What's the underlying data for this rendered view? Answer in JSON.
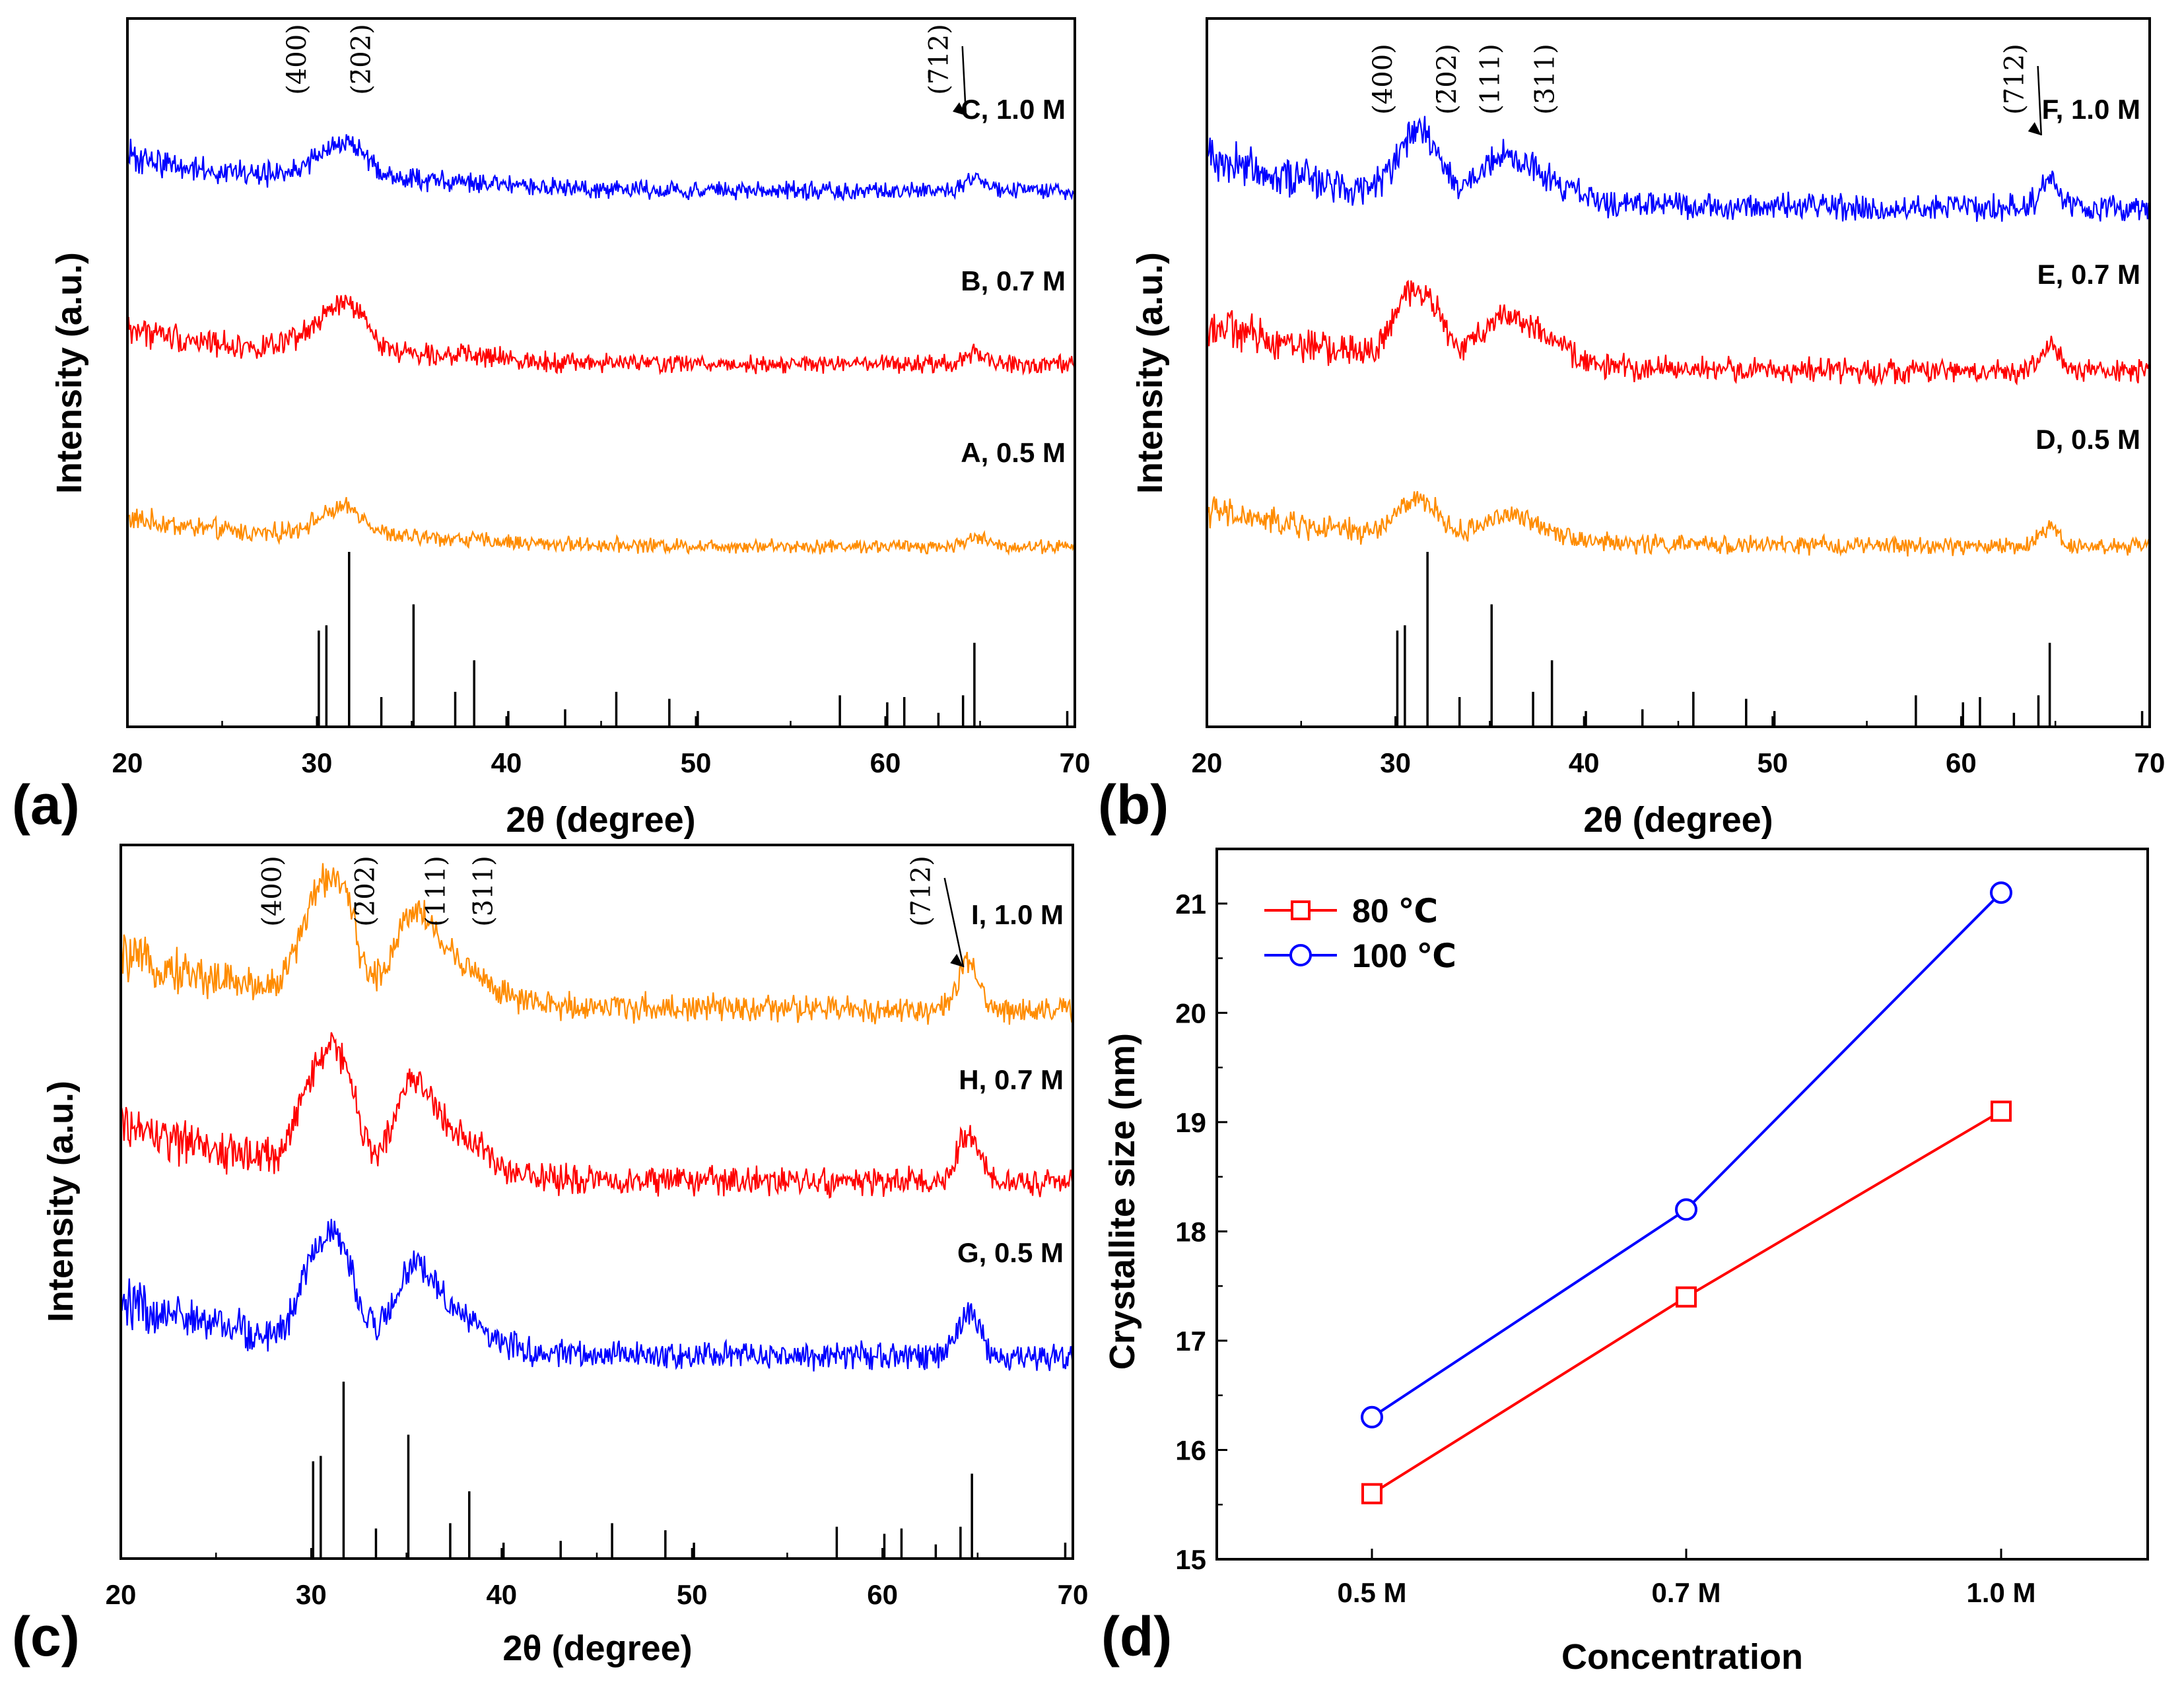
{
  "chart_data": [
    {
      "panel": "(a)",
      "type": "line",
      "xlabel": "2θ (degree)",
      "ylabel": "Intensity (a.u.)",
      "xlim": [
        20,
        70
      ],
      "xticks": [
        "20",
        "30",
        "40",
        "50",
        "60",
        "70"
      ],
      "series": [
        {
          "name": "C, 1.0 M",
          "color": "#ff8c00",
          "level": 3
        },
        {
          "name": "B, 0.7 M",
          "color": "#ff0000",
          "level": 2
        },
        {
          "name": "A, 0.5 M",
          "color": "#0000ff",
          "level": 1
        }
      ],
      "plane_labels": [
        {
          "text": "(400)",
          "x": 29.4
        },
        {
          "text": "(2̄02)",
          "x": 32.8
        },
        {
          "text": "(7̄12)",
          "x": 63.3
        }
      ],
      "reference_peaks": [
        {
          "x": 30.1,
          "h": 0.55
        },
        {
          "x": 30.5,
          "h": 0.58
        },
        {
          "x": 31.7,
          "h": 1.0
        },
        {
          "x": 33.4,
          "h": 0.17
        },
        {
          "x": 35.1,
          "h": 0.7
        },
        {
          "x": 37.3,
          "h": 0.2
        },
        {
          "x": 38.3,
          "h": 0.38
        },
        {
          "x": 40.1,
          "h": 0.09
        },
        {
          "x": 43.1,
          "h": 0.1
        },
        {
          "x": 45.8,
          "h": 0.2
        },
        {
          "x": 48.6,
          "h": 0.16
        },
        {
          "x": 50.1,
          "h": 0.09
        },
        {
          "x": 57.6,
          "h": 0.18
        },
        {
          "x": 60.1,
          "h": 0.14
        },
        {
          "x": 61.0,
          "h": 0.17
        },
        {
          "x": 62.8,
          "h": 0.08
        },
        {
          "x": 64.1,
          "h": 0.18
        },
        {
          "x": 64.7,
          "h": 0.48
        },
        {
          "x": 69.6,
          "h": 0.09
        }
      ]
    },
    {
      "panel": "(b)",
      "type": "line",
      "xlabel": "2θ (degree)",
      "ylabel": "Intensity (a.u.)",
      "xlim": [
        20,
        70
      ],
      "xticks": [
        "20",
        "30",
        "40",
        "50",
        "60",
        "70"
      ],
      "series": [
        {
          "name": "F, 1.0 M",
          "color": "#ff8c00",
          "level": 3
        },
        {
          "name": "E, 0.7 M",
          "color": "#ff0000",
          "level": 2
        },
        {
          "name": "D, 0.5 M",
          "color": "#0000ff",
          "level": 1
        }
      ],
      "plane_labels": [
        {
          "text": "(400)",
          "x": 29.8
        },
        {
          "text": "(2̄02)",
          "x": 33.2
        },
        {
          "text": "(111)",
          "x": 35.5
        },
        {
          "text": "(3̄11)",
          "x": 38.4
        },
        {
          "text": "(7̄12)",
          "x": 63.3
        }
      ],
      "reference_peaks": [
        {
          "x": 30.1,
          "h": 0.55
        },
        {
          "x": 30.5,
          "h": 0.58
        },
        {
          "x": 31.7,
          "h": 1.0
        },
        {
          "x": 33.4,
          "h": 0.17
        },
        {
          "x": 35.1,
          "h": 0.7
        },
        {
          "x": 37.3,
          "h": 0.2
        },
        {
          "x": 38.3,
          "h": 0.38
        },
        {
          "x": 40.1,
          "h": 0.09
        },
        {
          "x": 43.1,
          "h": 0.1
        },
        {
          "x": 45.8,
          "h": 0.2
        },
        {
          "x": 48.6,
          "h": 0.16
        },
        {
          "x": 50.1,
          "h": 0.09
        },
        {
          "x": 57.6,
          "h": 0.18
        },
        {
          "x": 60.1,
          "h": 0.14
        },
        {
          "x": 61.0,
          "h": 0.17
        },
        {
          "x": 62.8,
          "h": 0.08
        },
        {
          "x": 64.1,
          "h": 0.18
        },
        {
          "x": 64.7,
          "h": 0.48
        },
        {
          "x": 69.6,
          "h": 0.09
        }
      ]
    },
    {
      "panel": "(c)",
      "type": "line",
      "xlabel": "2θ (degree)",
      "ylabel": "Intensity (a.u.)",
      "xlim": [
        20,
        70
      ],
      "xticks": [
        "20",
        "30",
        "40",
        "50",
        "60",
        "70"
      ],
      "series": [
        {
          "name": "I, 1.0 M",
          "color": "#ff8c00",
          "level": 3
        },
        {
          "name": "H, 0.7 M",
          "color": "#ff0000",
          "level": 2
        },
        {
          "name": "G, 0.5 M",
          "color": "#0000ff",
          "level": 1
        }
      ],
      "plane_labels": [
        {
          "text": "(400)",
          "x": 28.4
        },
        {
          "text": "(2̄02)",
          "x": 33.3
        },
        {
          "text": "(111)",
          "x": 37.0
        },
        {
          "text": "(3̄11)",
          "x": 39.5
        },
        {
          "text": "(7̄12)",
          "x": 62.5
        }
      ],
      "reference_peaks": [
        {
          "x": 30.1,
          "h": 0.55
        },
        {
          "x": 30.5,
          "h": 0.58
        },
        {
          "x": 31.7,
          "h": 1.0
        },
        {
          "x": 33.4,
          "h": 0.17
        },
        {
          "x": 35.1,
          "h": 0.7
        },
        {
          "x": 37.3,
          "h": 0.2
        },
        {
          "x": 38.3,
          "h": 0.38
        },
        {
          "x": 40.1,
          "h": 0.09
        },
        {
          "x": 43.1,
          "h": 0.1
        },
        {
          "x": 45.8,
          "h": 0.2
        },
        {
          "x": 48.6,
          "h": 0.16
        },
        {
          "x": 50.1,
          "h": 0.09
        },
        {
          "x": 57.6,
          "h": 0.18
        },
        {
          "x": 60.1,
          "h": 0.14
        },
        {
          "x": 61.0,
          "h": 0.17
        },
        {
          "x": 62.8,
          "h": 0.08
        },
        {
          "x": 64.1,
          "h": 0.18
        },
        {
          "x": 64.7,
          "h": 0.48
        },
        {
          "x": 69.6,
          "h": 0.09
        }
      ]
    },
    {
      "panel": "(d)",
      "type": "line",
      "xlabel": "Concentration",
      "ylabel": "Crystallite size (nm)",
      "categories": [
        "0.5 M",
        "0.7 M",
        "1.0 M"
      ],
      "ylim": [
        15,
        21.5
      ],
      "yticks": [
        "15",
        "16",
        "17",
        "18",
        "19",
        "20",
        "21"
      ],
      "legend": "top-left",
      "series": [
        {
          "name": "80 ℃",
          "color": "#ff0000",
          "marker": "square",
          "values": [
            15.6,
            17.4,
            19.1
          ]
        },
        {
          "name": "100 ℃",
          "color": "#0000ff",
          "marker": "circle",
          "values": [
            16.3,
            18.2,
            21.1
          ]
        }
      ]
    }
  ]
}
